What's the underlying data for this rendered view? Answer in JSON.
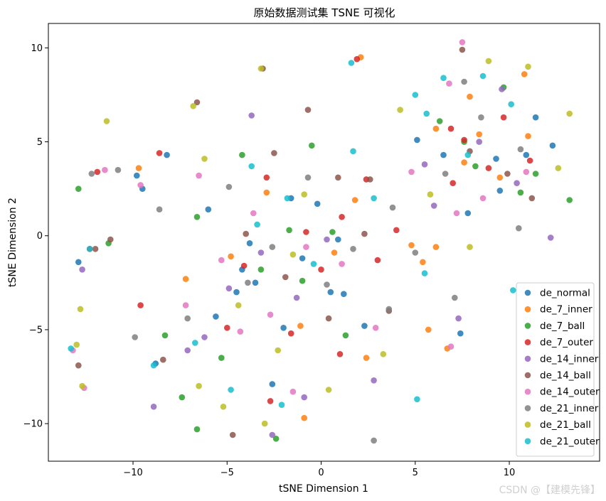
{
  "chart_data": {
    "type": "scatter",
    "title": "原始数据测试集 TSNE 可视化",
    "xlabel": "tSNE Dimension 1",
    "ylabel": "tSNE Dimension 2",
    "xlim": [
      -14.5,
      14.8
    ],
    "ylim": [
      -12,
      11.3
    ],
    "xticks": [
      -10,
      -5,
      0,
      5,
      10
    ],
    "yticks": [
      -10,
      -5,
      0,
      5,
      10
    ],
    "grid": false,
    "legend_position": "bottom-right",
    "series": [
      {
        "name": "de_normal",
        "color": "#1f77b4",
        "points": [
          [
            -12.9,
            -1.4
          ],
          [
            -9.8,
            3.2
          ],
          [
            -9.5,
            2.5
          ],
          [
            -8.8,
            -6.8
          ],
          [
            -8.2,
            4.3
          ],
          [
            -6.0,
            1.4
          ],
          [
            -5.6,
            -4.3
          ],
          [
            -4.2,
            -1.8
          ],
          [
            -3.5,
            -2.5
          ],
          [
            -2.6,
            -7.9
          ],
          [
            -2.0,
            -4.9
          ],
          [
            -1.6,
            2.0
          ],
          [
            -0.2,
            1.7
          ],
          [
            0.5,
            -3.0
          ],
          [
            1.2,
            -3.1
          ],
          [
            2.3,
            -4.8
          ],
          [
            7.4,
            -5.2
          ],
          [
            5.1,
            5.1
          ],
          [
            6.5,
            4.3
          ],
          [
            7.8,
            1.2
          ],
          [
            9.3,
            4.1
          ],
          [
            10.9,
            4.3
          ],
          [
            11.4,
            6.3
          ],
          [
            12.3,
            4.8
          ],
          [
            9.5,
            2.4
          ],
          [
            -3.8,
            -0.4
          ],
          [
            -1.0,
            -1.2
          ],
          [
            -4.5,
            -3.0
          ],
          [
            0.9,
            -0.2
          ]
        ]
      },
      {
        "name": "de_7_inner",
        "color": "#ff7f0e",
        "points": [
          [
            -9.7,
            3.6
          ],
          [
            -7.2,
            -2.3
          ],
          [
            -4.8,
            -1.1
          ],
          [
            -1.1,
            -4.8
          ],
          [
            0.7,
            -0.9
          ],
          [
            1.8,
            1.9
          ],
          [
            2.1,
            9.5
          ],
          [
            2.4,
            -6.5
          ],
          [
            4.8,
            -0.5
          ],
          [
            5.4,
            -1.4
          ],
          [
            5.7,
            -5.0
          ],
          [
            6.1,
            -0.6
          ],
          [
            6.7,
            -6.0
          ],
          [
            7.9,
            7.4
          ],
          [
            9.5,
            3.1
          ],
          [
            10.8,
            8.6
          ],
          [
            11.0,
            5.3
          ],
          [
            -2.9,
            2.3
          ],
          [
            -0.9,
            -9.7
          ],
          [
            7.6,
            3.9
          ],
          [
            8.4,
            5.4
          ],
          [
            6.1,
            5.7
          ]
        ]
      },
      {
        "name": "de_7_ball",
        "color": "#2ca02c",
        "points": [
          [
            -12.9,
            2.5
          ],
          [
            -11.3,
            -0.4
          ],
          [
            -8.3,
            -5.3
          ],
          [
            -7.4,
            -8.6
          ],
          [
            -6.6,
            -10.3
          ],
          [
            -5.3,
            -6.5
          ],
          [
            -4.2,
            4.3
          ],
          [
            -2.4,
            -10.8
          ],
          [
            -1.7,
            0.3
          ],
          [
            -0.5,
            4.8
          ],
          [
            1.3,
            -5.3
          ],
          [
            8.2,
            3.7
          ],
          [
            9.7,
            7.9
          ],
          [
            10.6,
            2.3
          ],
          [
            11.4,
            3.3
          ],
          [
            13.2,
            1.9
          ],
          [
            -6.6,
            1.0
          ],
          [
            -3.2,
            -1.8
          ],
          [
            -1.0,
            -2.4
          ],
          [
            0.6,
            0.2
          ],
          [
            6.3,
            6.1
          ],
          [
            7.6,
            5.0
          ]
        ]
      },
      {
        "name": "de_7_outer",
        "color": "#d62728",
        "points": [
          [
            -11.9,
            3.4
          ],
          [
            -12.3,
            -0.7
          ],
          [
            -9.6,
            -3.7
          ],
          [
            -8.6,
            4.4
          ],
          [
            -5.0,
            -4.9
          ],
          [
            -2.9,
            3.1
          ],
          [
            -1.6,
            -5.2
          ],
          [
            -0.8,
            0.2
          ],
          [
            1.1,
            1.0
          ],
          [
            1.9,
            9.4
          ],
          [
            2.4,
            3.0
          ],
          [
            3.0,
            -1.3
          ],
          [
            4.0,
            0.3
          ],
          [
            7.6,
            5.1
          ],
          [
            6.9,
            5.7
          ],
          [
            8.9,
            3.6
          ],
          [
            9.7,
            6.3
          ],
          [
            11.1,
            4.0
          ],
          [
            1.0,
            -6.3
          ],
          [
            -2.7,
            -8.8
          ],
          [
            -4.1,
            -1.6
          ],
          [
            0.0,
            -1.8
          ],
          [
            7.0,
            2.8
          ]
        ]
      },
      {
        "name": "de_14_inner",
        "color": "#9467bd",
        "points": [
          [
            -12.7,
            -1.8
          ],
          [
            -8.9,
            -9.1
          ],
          [
            -7.1,
            -6.1
          ],
          [
            -6.2,
            -5.4
          ],
          [
            -3.7,
            6.4
          ],
          [
            -3.2,
            -0.9
          ],
          [
            -2.6,
            -10.6
          ],
          [
            -0.9,
            -8.6
          ],
          [
            0.3,
            -0.2
          ],
          [
            2.8,
            -7.7
          ],
          [
            6.0,
            1.6
          ],
          [
            7.3,
            -4.4
          ],
          [
            8.4,
            5.0
          ],
          [
            12.2,
            -0.1
          ],
          [
            9.6,
            7.8
          ],
          [
            10.4,
            2.8
          ],
          [
            -1.3,
            -3.3
          ],
          [
            -4.9,
            -2.8
          ],
          [
            5.5,
            3.8
          ]
        ]
      },
      {
        "name": "de_14_ball",
        "color": "#8c564b",
        "points": [
          [
            -12.9,
            -6.9
          ],
          [
            -12.0,
            -0.7
          ],
          [
            -11.2,
            -0.2
          ],
          [
            -8.4,
            -6.6
          ],
          [
            -4.7,
            -10.6
          ],
          [
            -3.1,
            8.9
          ],
          [
            -2.5,
            4.4
          ],
          [
            -0.7,
            6.7
          ],
          [
            0.9,
            3.1
          ],
          [
            2.3,
            0.1
          ],
          [
            2.6,
            3.0
          ],
          [
            3.6,
            -4.0
          ],
          [
            7.5,
            9.9
          ],
          [
            7.9,
            4.5
          ],
          [
            9.9,
            3.3
          ],
          [
            11.2,
            2.0
          ],
          [
            -1.9,
            -2.2
          ],
          [
            -4.0,
            0.1
          ],
          [
            0.4,
            -4.4
          ],
          [
            -6.6,
            7.1
          ]
        ]
      },
      {
        "name": "de_14_outer",
        "color": "#e377c2",
        "points": [
          [
            -13.2,
            -6.1
          ],
          [
            -12.6,
            -8.1
          ],
          [
            -11.5,
            3.5
          ],
          [
            -9.6,
            2.7
          ],
          [
            -7.2,
            -3.7
          ],
          [
            -6.5,
            3.2
          ],
          [
            -4.3,
            -5.1
          ],
          [
            -3.6,
            1.2
          ],
          [
            -2.7,
            -4.2
          ],
          [
            -1.5,
            -8.3
          ],
          [
            1.1,
            -1.5
          ],
          [
            2.9,
            -4.9
          ],
          [
            6.9,
            -5.9
          ],
          [
            7.5,
            10.3
          ],
          [
            6.8,
            8.1
          ],
          [
            7.2,
            1.2
          ],
          [
            10.9,
            3.4
          ],
          [
            -5.3,
            -1.3
          ],
          [
            -0.8,
            -0.6
          ],
          [
            4.8,
            3.4
          ],
          [
            8.6,
            2.0
          ]
        ]
      },
      {
        "name": "de_21_inner",
        "color": "#7f7f7f",
        "points": [
          [
            -12.2,
            3.3
          ],
          [
            -10.8,
            3.5
          ],
          [
            -9.9,
            -5.4
          ],
          [
            -8.6,
            1.4
          ],
          [
            -7.1,
            -4.4
          ],
          [
            -4.9,
            2.6
          ],
          [
            -3.9,
            -2.5
          ],
          [
            -0.7,
            3.1
          ],
          [
            1.7,
            -0.7
          ],
          [
            2.8,
            -10.9
          ],
          [
            3.6,
            -3.9
          ],
          [
            3.8,
            1.5
          ],
          [
            5.0,
            -0.9
          ],
          [
            7.1,
            -3.3
          ],
          [
            7.6,
            8.2
          ],
          [
            8.5,
            6.3
          ],
          [
            10.6,
            4.6
          ],
          [
            10.5,
            0.4
          ],
          [
            -2.6,
            -0.6
          ],
          [
            0.3,
            -2.6
          ],
          [
            6.6,
            3.3
          ]
        ]
      },
      {
        "name": "de_21_ball",
        "color": "#bcbd22",
        "points": [
          [
            -13.0,
            -5.8
          ],
          [
            -12.8,
            -3.9
          ],
          [
            -12.7,
            -8.0
          ],
          [
            -11.4,
            6.1
          ],
          [
            -6.8,
            6.9
          ],
          [
            -6.5,
            -8.0
          ],
          [
            -6.2,
            4.1
          ],
          [
            -5.2,
            -9.1
          ],
          [
            -3.2,
            8.9
          ],
          [
            -3.0,
            -10.0
          ],
          [
            -2.3,
            -6.1
          ],
          [
            -0.9,
            2.2
          ],
          [
            0.4,
            -8.2
          ],
          [
            3.3,
            -6.3
          ],
          [
            4.2,
            6.7
          ],
          [
            7.9,
            -0.6
          ],
          [
            8.9,
            9.3
          ],
          [
            11.0,
            9.0
          ],
          [
            12.6,
            3.6
          ],
          [
            13.2,
            6.5
          ],
          [
            5.8,
            2.2
          ],
          [
            -4.4,
            -3.7
          ],
          [
            -1.5,
            -1.0
          ]
        ]
      },
      {
        "name": "de_21_outer",
        "color": "#17becf",
        "points": [
          [
            -13.3,
            -6.0
          ],
          [
            -12.3,
            -0.7
          ],
          [
            -8.9,
            -6.9
          ],
          [
            -6.7,
            -5.7
          ],
          [
            -4.8,
            -8.2
          ],
          [
            -3.7,
            3.7
          ],
          [
            -2.1,
            -9.0
          ],
          [
            -1.8,
            2.0
          ],
          [
            1.6,
            9.2
          ],
          [
            1.7,
            4.5
          ],
          [
            2.8,
            2.0
          ],
          [
            5.1,
            -8.7
          ],
          [
            5.5,
            -2.0
          ],
          [
            5.0,
            7.5
          ],
          [
            5.6,
            6.5
          ],
          [
            6.5,
            8.4
          ],
          [
            8.6,
            8.5
          ],
          [
            10.1,
            7.0
          ],
          [
            10.2,
            -2.9
          ],
          [
            -3.4,
            0.6
          ],
          [
            -0.4,
            -1.5
          ],
          [
            7.8,
            4.3
          ]
        ]
      }
    ]
  },
  "watermark": "CSDN @【建模先锋】"
}
